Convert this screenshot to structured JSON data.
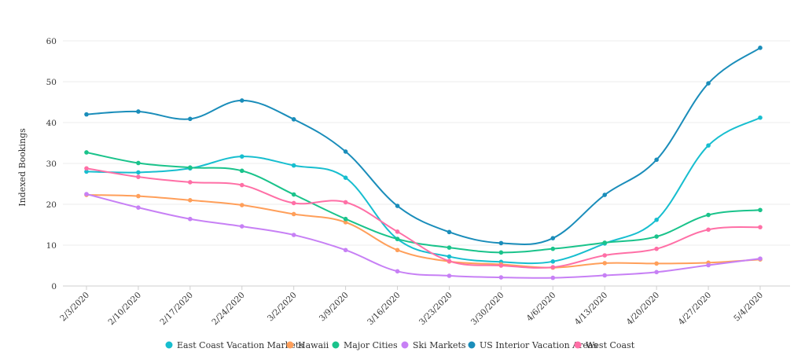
{
  "chart_data": {
    "type": "line",
    "ylabel": "Indexed Bookings",
    "xlabel": "",
    "ylim": [
      0,
      60
    ],
    "yticks": [
      0,
      10,
      20,
      30,
      40,
      50,
      60
    ],
    "grid": true,
    "legend_position": "bottom",
    "categories": [
      "2/3/2020",
      "2/10/2020",
      "2/17/2020",
      "2/24/2020",
      "3/2/2020",
      "3/9/2020",
      "3/16/2020",
      "3/23/2020",
      "3/30/2020",
      "4/6/2020",
      "4/13/2020",
      "4/20/2020",
      "4/27/2020",
      "5/4/2020"
    ],
    "series": [
      {
        "name": "East Coast Vacation Markets",
        "color": "#17becf",
        "values": [
          28.0,
          27.8,
          28.8,
          31.7,
          29.5,
          26.5,
          11.5,
          7.2,
          5.9,
          6.0,
          10.4,
          16.2,
          34.4,
          41.2
        ]
      },
      {
        "name": "Hawaii",
        "color": "#ff9f5a",
        "values": [
          22.3,
          22.0,
          21.0,
          19.8,
          17.6,
          15.6,
          8.8,
          6.0,
          5.3,
          4.5,
          5.6,
          5.5,
          5.7,
          6.5
        ]
      },
      {
        "name": "Major Cities",
        "color": "#1ac38b",
        "values": [
          32.7,
          30.1,
          29.0,
          28.2,
          22.4,
          16.4,
          11.5,
          9.4,
          8.2,
          9.1,
          10.6,
          12.1,
          17.4,
          18.6
        ]
      },
      {
        "name": "Ski Markets",
        "color": "#c780f5",
        "values": [
          22.5,
          19.2,
          16.4,
          14.6,
          12.5,
          8.8,
          3.6,
          2.5,
          2.1,
          2.0,
          2.6,
          3.4,
          5.1,
          6.7
        ]
      },
      {
        "name": "US Interior Vacation Areas",
        "color": "#1a8dba",
        "values": [
          42.0,
          42.7,
          40.9,
          45.4,
          40.8,
          32.9,
          19.6,
          13.2,
          10.5,
          11.7,
          22.3,
          30.9,
          49.6,
          58.3
        ]
      },
      {
        "name": "West Coast",
        "color": "#ff6fa6",
        "values": [
          28.8,
          26.7,
          25.4,
          24.7,
          20.3,
          20.5,
          13.3,
          6.1,
          5.0,
          4.6,
          7.5,
          9.1,
          13.8,
          14.4
        ]
      }
    ]
  }
}
